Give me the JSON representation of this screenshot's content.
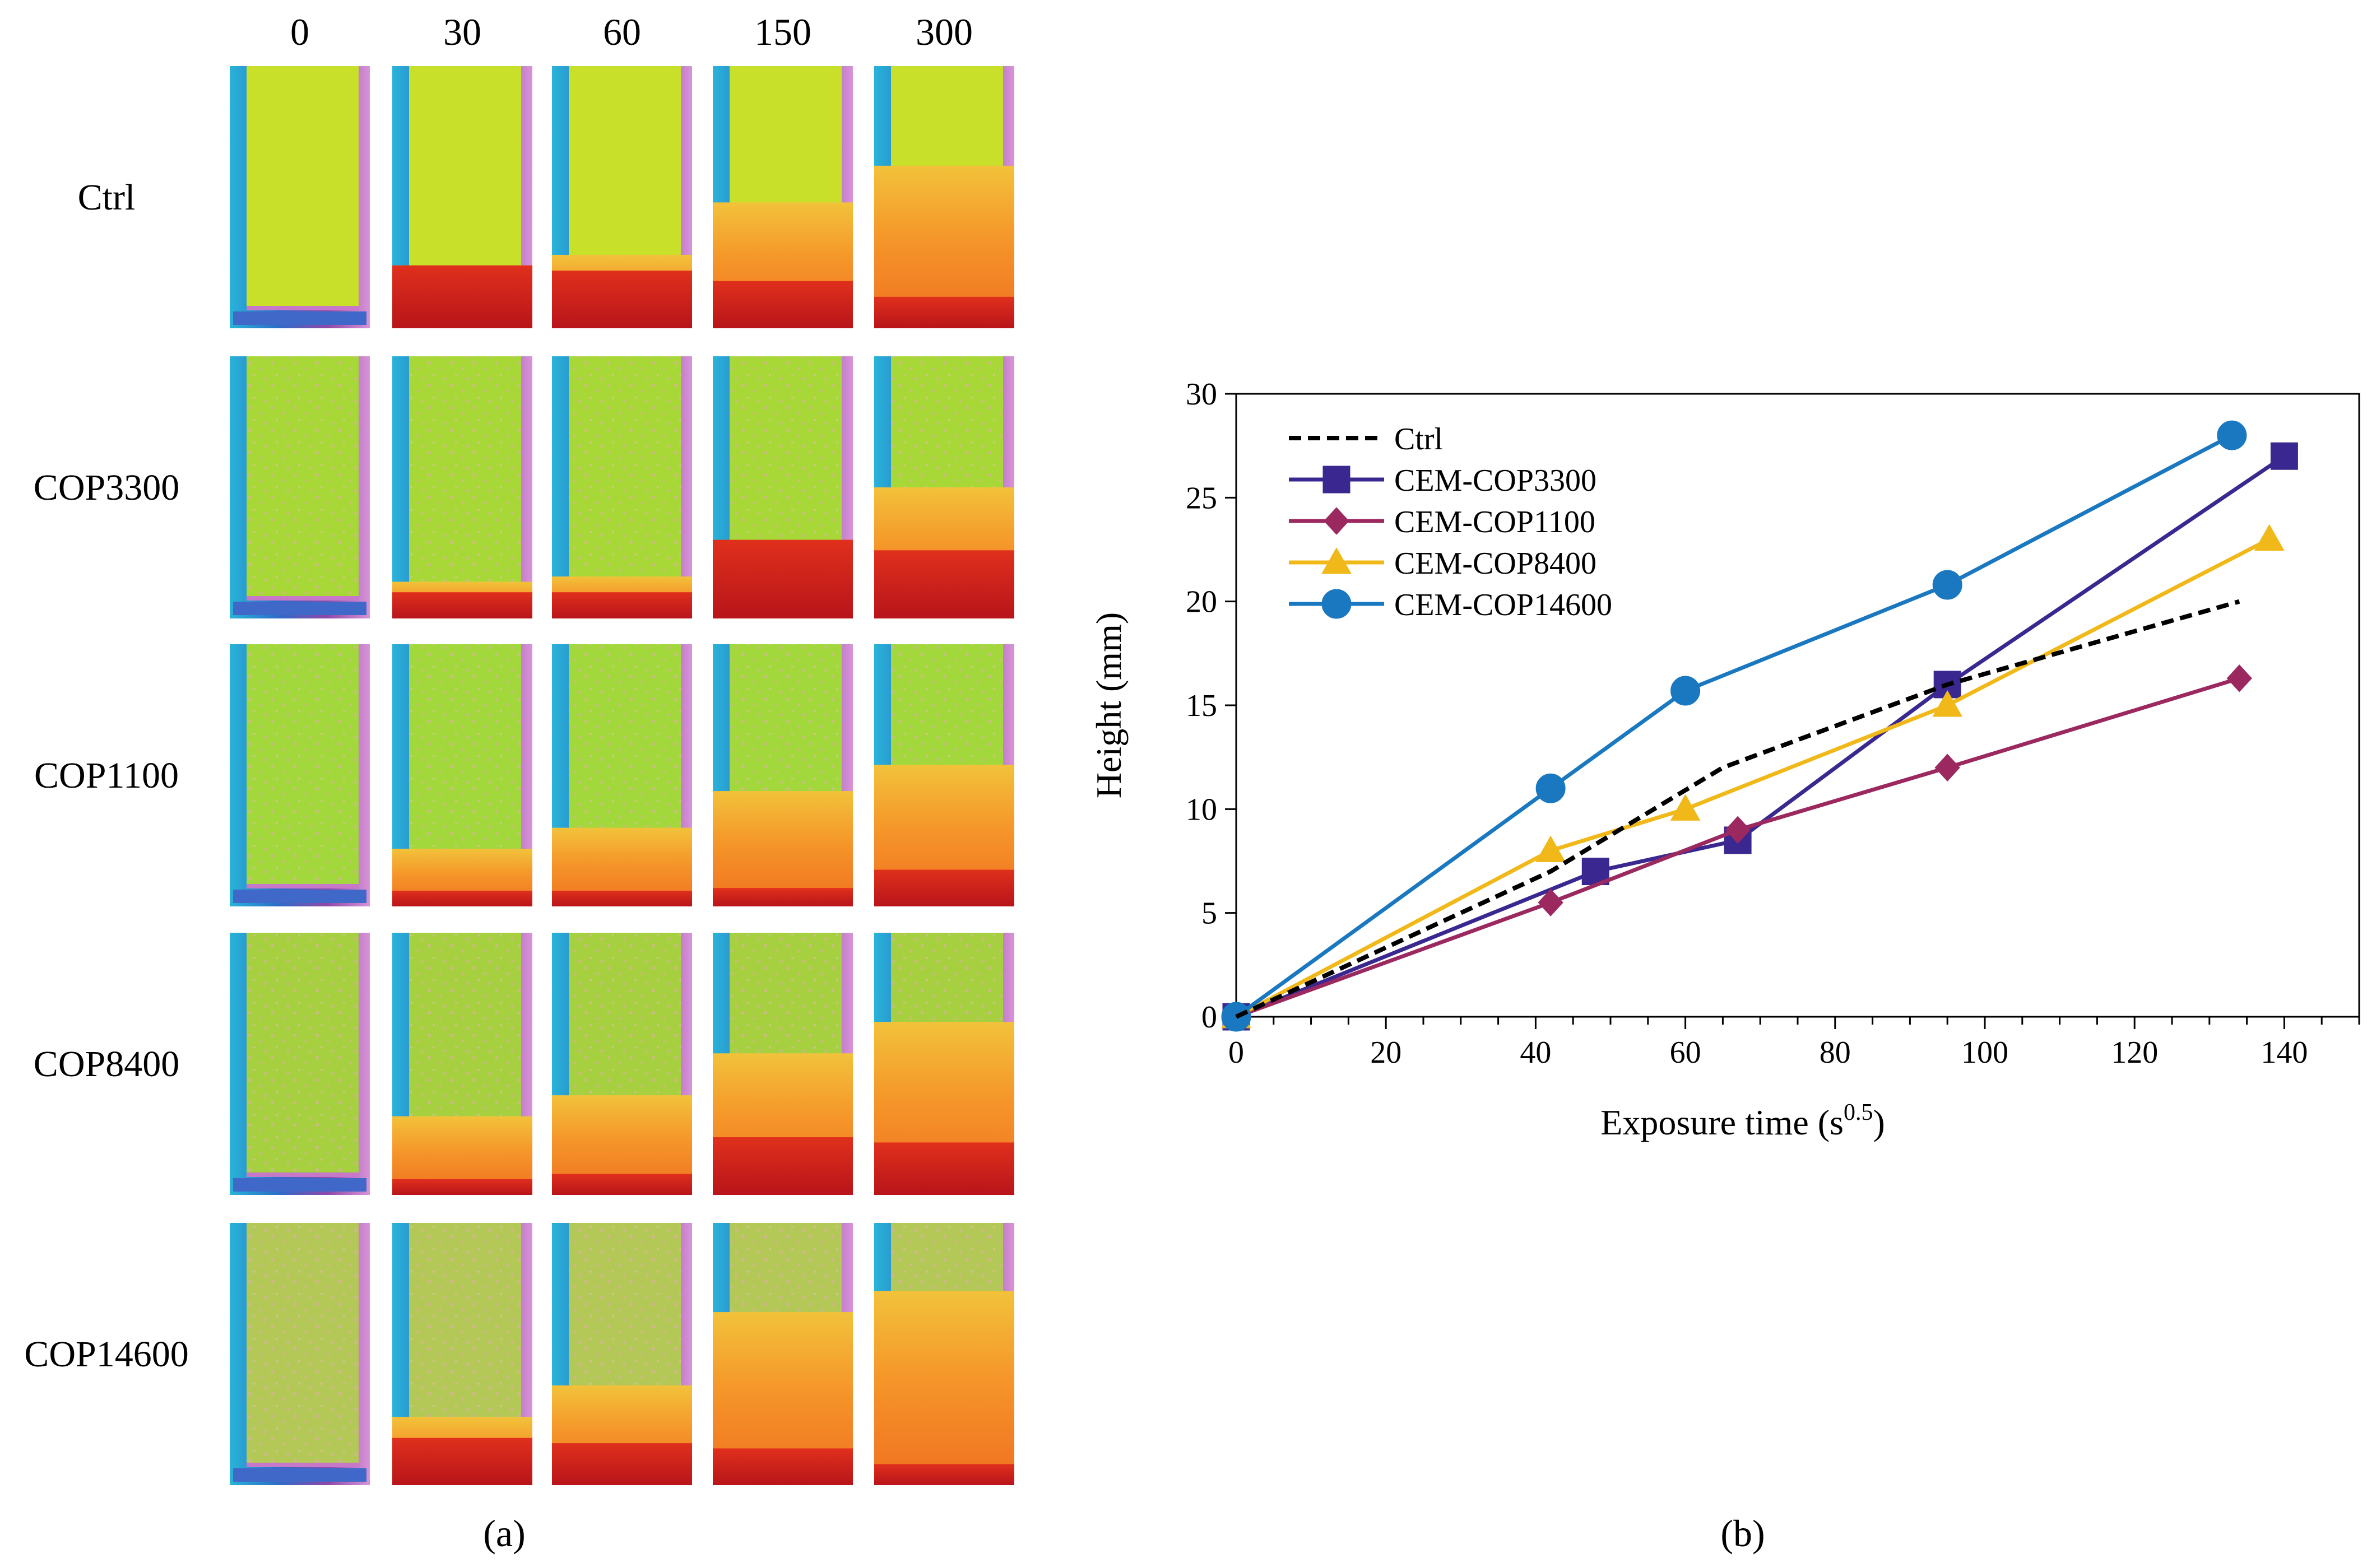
{
  "panel_a": {
    "label": "(a)",
    "label_letter": "a",
    "columns": [
      "0",
      "30",
      "60",
      "150",
      "300"
    ],
    "rows": [
      {
        "name": "Ctrl",
        "fronts": [
          0,
          0.24,
          0.28,
          0.48,
          0.62
        ],
        "dark": [
          0,
          0.24,
          0.22,
          0.18,
          0.12
        ],
        "bg": "#c8e02a",
        "speckle": false
      },
      {
        "name": "COP3300",
        "fronts": [
          0,
          0.14,
          0.16,
          0.3,
          0.5
        ],
        "dark": [
          0,
          0.1,
          0.1,
          0.3,
          0.26
        ],
        "bg": "#a8d838",
        "speckle": true
      },
      {
        "name": "COP1100",
        "fronts": [
          0,
          0.22,
          0.3,
          0.44,
          0.54
        ],
        "dark": [
          0,
          0.06,
          0.06,
          0.07,
          0.14
        ],
        "bg": "#a2d83c",
        "speckle": true
      },
      {
        "name": "COP8400",
        "fronts": [
          0,
          0.3,
          0.38,
          0.54,
          0.66
        ],
        "dark": [
          0,
          0.06,
          0.08,
          0.22,
          0.2
        ],
        "bg": "#a6d040",
        "speckle": true
      },
      {
        "name": "COP14600",
        "fronts": [
          0,
          0.26,
          0.38,
          0.66,
          0.74
        ],
        "dark": [
          0,
          0.18,
          0.16,
          0.14,
          0.08
        ],
        "bg": "#b4c858",
        "speckle": true
      }
    ]
  },
  "chart_data": {
    "type": "line",
    "panel_label": "(b)",
    "panel_letter": "b",
    "xlabel_main": "Exposure time (s",
    "xlabel_sup": "0.5",
    "xlabel_end": ")",
    "ylabel": "Height (mm)",
    "xlim": [
      0,
      150
    ],
    "ylim": [
      0,
      30
    ],
    "xticks": [
      0,
      20,
      40,
      60,
      80,
      100,
      120,
      140
    ],
    "yticks": [
      0,
      5,
      10,
      15,
      20,
      25,
      30
    ],
    "legend_position": "top-left",
    "series": [
      {
        "name": "Ctrl",
        "color": "#000000",
        "style": "dashed",
        "marker": "none",
        "x": [
          0,
          42,
          65,
          95,
          134
        ],
        "y": [
          0,
          7,
          12,
          16,
          20
        ]
      },
      {
        "name": "CEM-COP3300",
        "color": "#3a2890",
        "style": "solid",
        "marker": "square",
        "x": [
          0,
          48,
          67,
          95,
          140
        ],
        "y": [
          0,
          7,
          8.5,
          16,
          27
        ]
      },
      {
        "name": "CEM-COP1100",
        "color": "#9c2860",
        "style": "solid",
        "marker": "diamond",
        "x": [
          0,
          42,
          67,
          95,
          134
        ],
        "y": [
          0,
          5.5,
          9,
          12,
          16.3
        ]
      },
      {
        "name": "CEM-COP8400",
        "color": "#f0b818",
        "style": "solid",
        "marker": "triangle",
        "x": [
          0,
          42,
          60,
          95,
          138
        ],
        "y": [
          0,
          8,
          10,
          15,
          23
        ]
      },
      {
        "name": "CEM-COP14600",
        "color": "#1a78c0",
        "style": "solid",
        "marker": "circle",
        "x": [
          0,
          42,
          60,
          95,
          133
        ],
        "y": [
          0,
          11,
          15.7,
          20.8,
          28
        ]
      }
    ]
  }
}
